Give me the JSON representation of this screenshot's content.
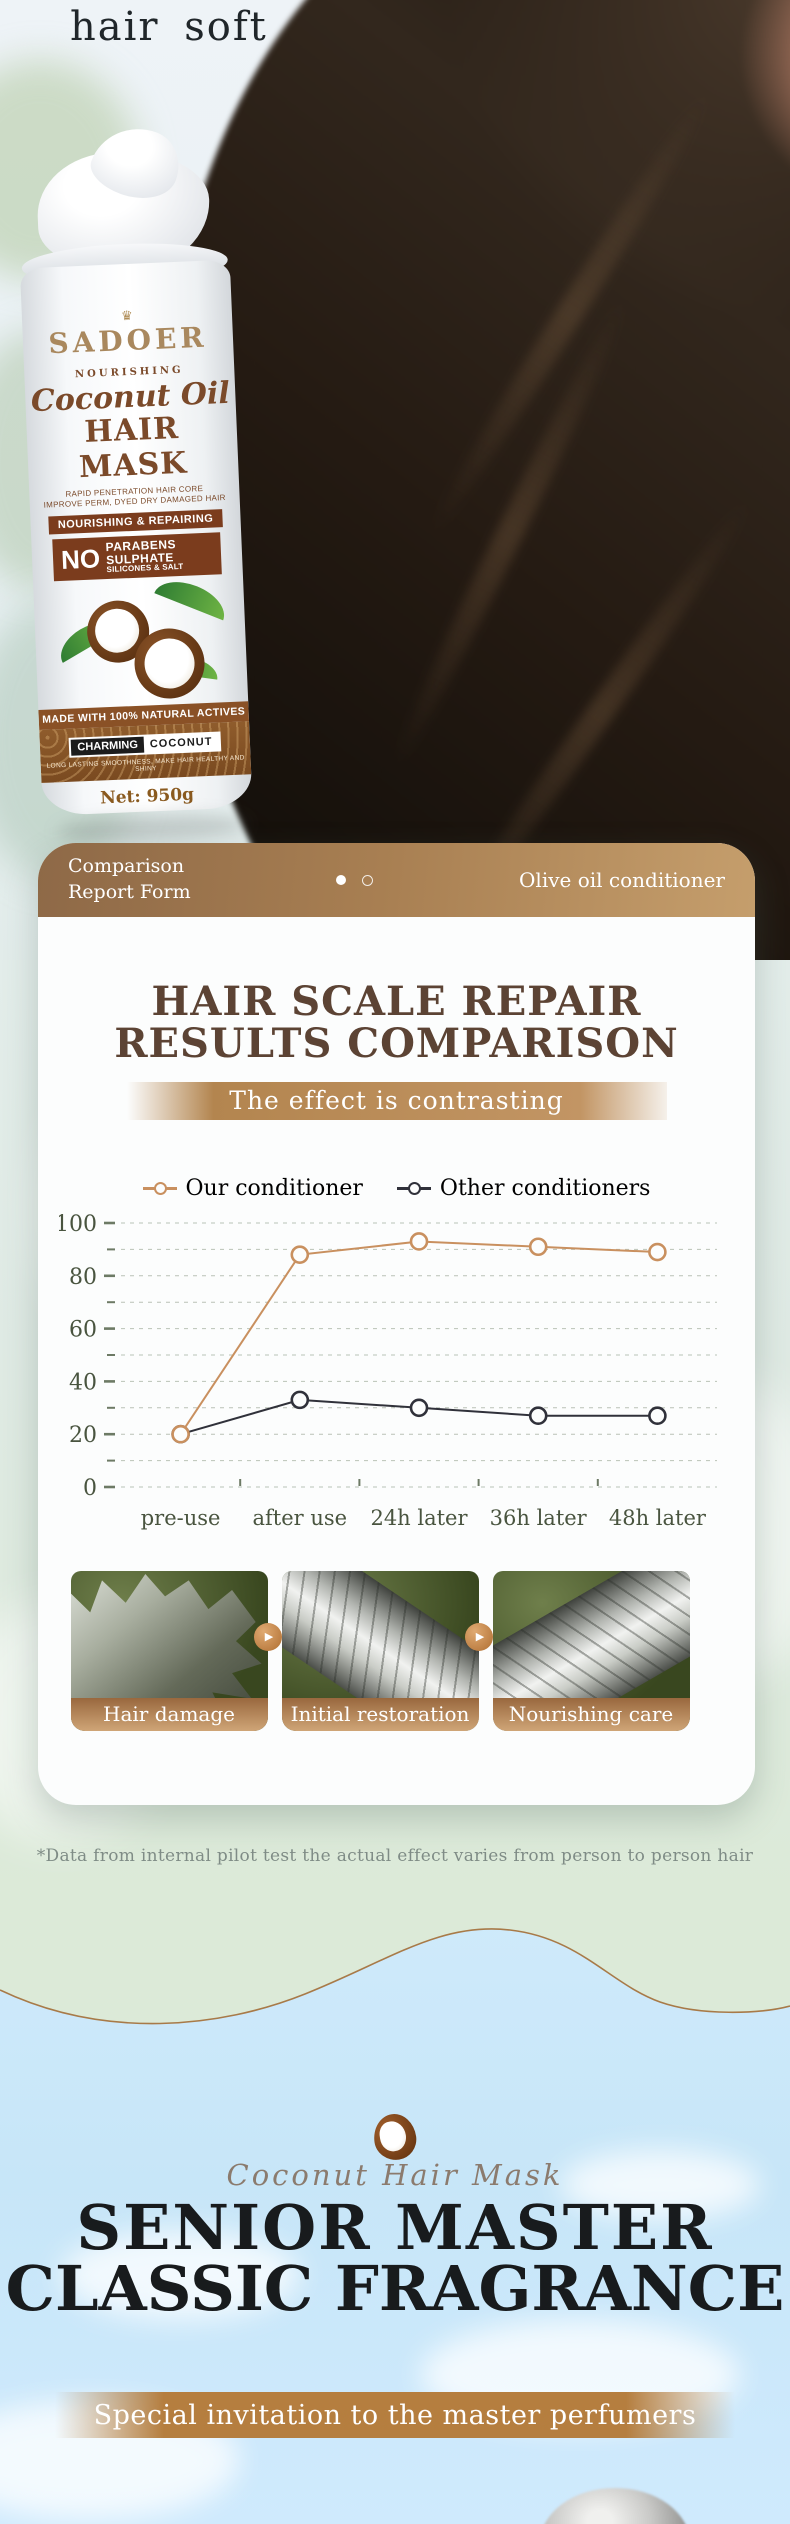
{
  "hero": {
    "headline": "hair soft"
  },
  "bottle": {
    "crown_icon": "♛",
    "brand": "SADOER",
    "subtitle": "NOURISHING",
    "product_script": "Coconut Oil",
    "product_name": "HAIR MASK",
    "description_line1": "RAPID PENETRATION HAIR CORE",
    "description_line2": "IMPROVE PERM, DYED DRY DAMAGED HAIR",
    "claim_banner": "NOURISHING & REPAIRING",
    "no_label": "NO",
    "no_item1": "PARABENS",
    "no_item2": "SULPHATE",
    "no_item3": "SILICONES & SALT",
    "made_with": "MADE WITH 100% NATURAL ACTIVES",
    "charming": "CHARMING",
    "coconut": "COCONUT",
    "tagline": "LONG LASTING SMOOTHNESS, MAKE HAIR HEALTHY AND SHINY",
    "net_weight": "Net: 950g"
  },
  "report_card": {
    "header": {
      "title_line1": "Comparison",
      "title_line2": "Report Form",
      "right_label": "Olive oil conditioner"
    },
    "title_line1": "HAIR SCALE REPAIR",
    "title_line2": "RESULTS COMPARISON",
    "banner": "The effect is contrasting",
    "stages": [
      {
        "label": "Hair damage"
      },
      {
        "label": "Initial restoration"
      },
      {
        "label": "Nourishing care"
      }
    ],
    "arrow_icon": "▶"
  },
  "chart_data": {
    "type": "line",
    "title": "Hair scale repair results comparison",
    "categories": [
      "pre-use",
      "after use",
      "24h later",
      "36h later",
      "48h later"
    ],
    "series": [
      {
        "name": "Our conditioner",
        "color": "#c9905f",
        "values": [
          20,
          88,
          93,
          91,
          89
        ]
      },
      {
        "name": "Other conditioners",
        "color": "#30313a",
        "values": [
          20,
          33,
          30,
          27,
          27
        ]
      }
    ],
    "ylim": [
      0,
      100
    ],
    "ytick_major_step": 20,
    "ytick_minor_step": 10,
    "grid": "dashed-horizontal",
    "legend_position": "top",
    "xlabel": "",
    "ylabel": ""
  },
  "footnote": "*Data from internal pilot test the actual effect varies from person to person hair",
  "fragrance_section": {
    "script_label": "Coconut Hair Mask",
    "title_line1": "SENIOR MASTER",
    "title_line2": "CLASSIC FRAGRANCE",
    "banner": "Special invitation to the master perfumers"
  },
  "colors": {
    "accent_bronze": "#b57e3f",
    "card_header_gradient_start": "#8e6947",
    "card_header_gradient_end": "#c59e6c",
    "title_brown": "#5c4334",
    "axis_text": "#49543f",
    "gridline": "#b9c2b6",
    "sky": "#cfeafb"
  }
}
